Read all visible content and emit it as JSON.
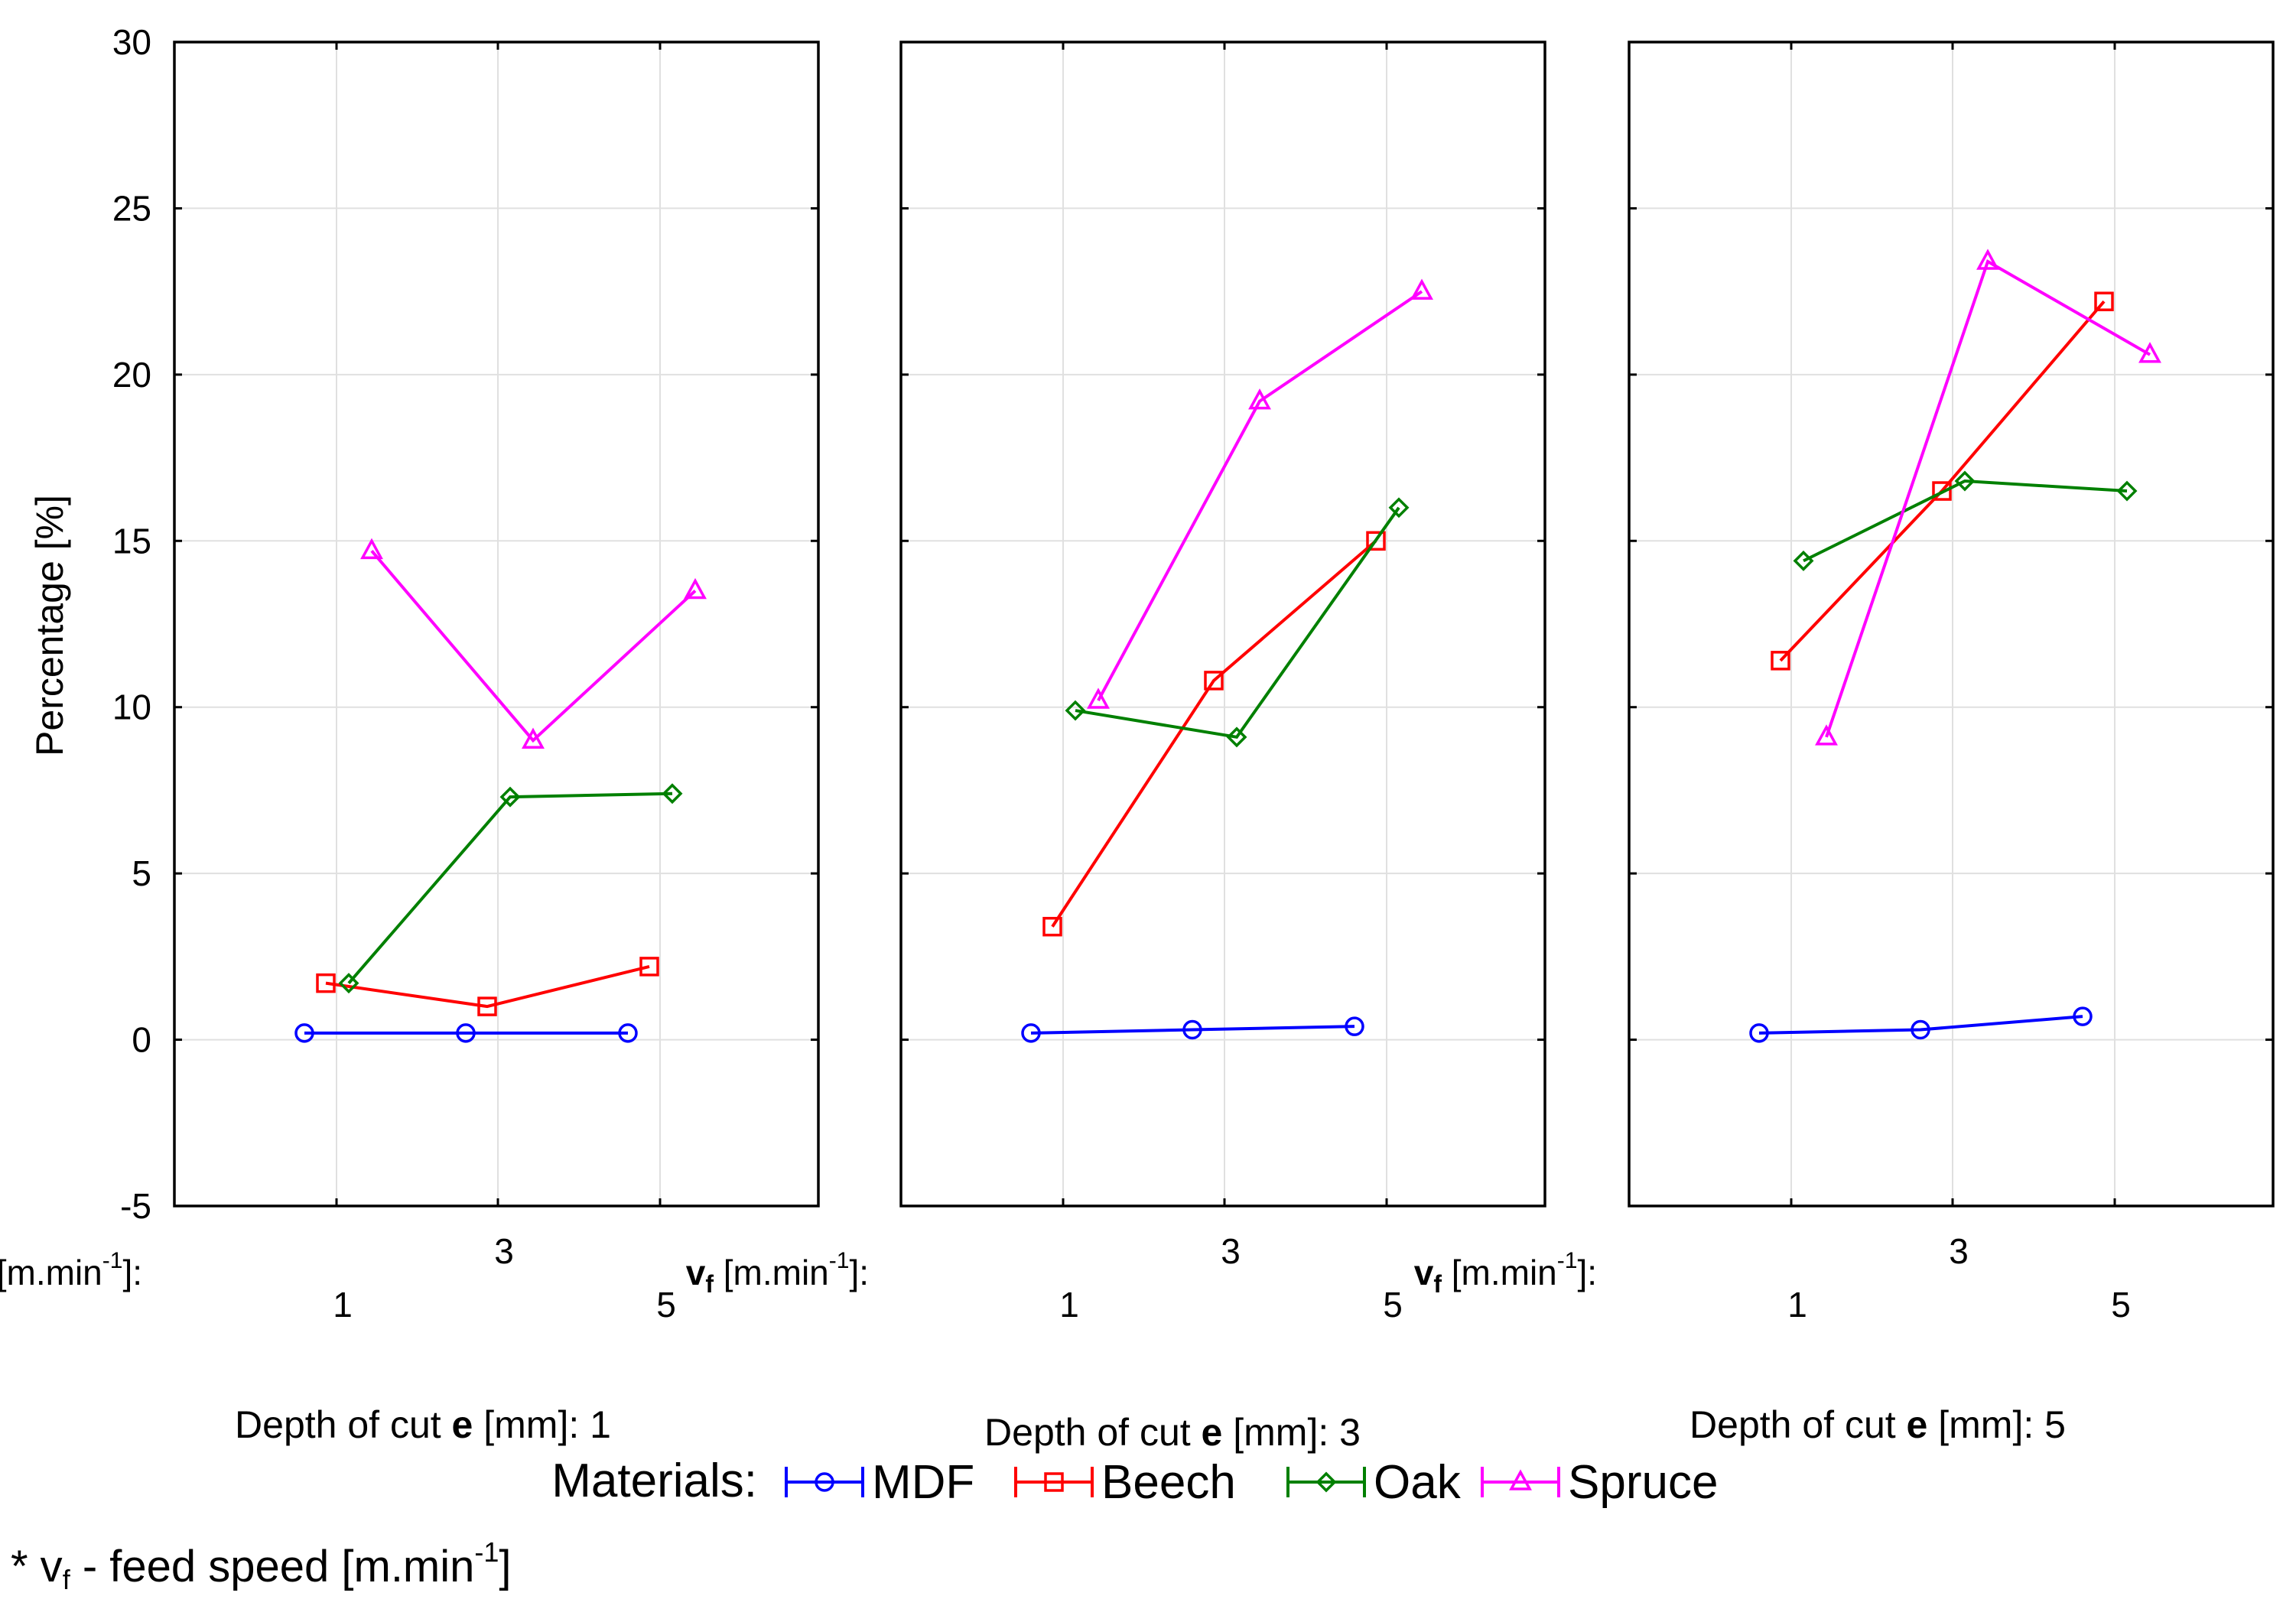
{
  "chart_data": {
    "type": "line",
    "ylabel": "Percentage [%]",
    "ylim": [
      -5,
      30
    ],
    "yticks": [
      "30",
      "25",
      "20",
      "15",
      "10",
      "5",
      "0",
      "-5"
    ],
    "ytick_values": [
      30,
      25,
      20,
      15,
      10,
      5,
      0,
      -5
    ],
    "x_axis_label": "v",
    "x_axis_sub": "f",
    "x_axis_unit": "[m.min",
    "x_axis_exp": "-1",
    "x_axis_close": "]:",
    "categories": [
      "1",
      "3",
      "5"
    ],
    "grid": true,
    "panels": [
      {
        "title_prefix": "Depth of cut ",
        "title_var": "e",
        "title_suffix": " [mm]: 1",
        "series": [
          {
            "name": "MDF",
            "values": [
              0.2,
              0.2,
              0.2
            ]
          },
          {
            "name": "Beech",
            "values": [
              1.7,
              1.0,
              2.2
            ]
          },
          {
            "name": "Oak",
            "values": [
              1.7,
              7.3,
              7.4
            ]
          },
          {
            "name": "Spruce",
            "values": [
              14.7,
              9.0,
              13.5
            ]
          }
        ]
      },
      {
        "title_prefix": "Depth of cut ",
        "title_var": "e",
        "title_suffix": " [mm]: 3",
        "series": [
          {
            "name": "MDF",
            "values": [
              0.2,
              0.3,
              0.4
            ]
          },
          {
            "name": "Beech",
            "values": [
              3.4,
              10.8,
              15.0
            ]
          },
          {
            "name": "Oak",
            "values": [
              9.9,
              9.1,
              16.0
            ]
          },
          {
            "name": "Spruce",
            "values": [
              10.2,
              19.2,
              22.5
            ]
          }
        ]
      },
      {
        "title_prefix": "Depth of cut ",
        "title_var": "e",
        "title_suffix": " [mm]: 5",
        "series": [
          {
            "name": "MDF",
            "values": [
              0.2,
              0.3,
              0.7
            ]
          },
          {
            "name": "Beech",
            "values": [
              11.4,
              16.5,
              22.2
            ]
          },
          {
            "name": "Oak",
            "values": [
              14.4,
              16.8,
              16.5
            ]
          },
          {
            "name": "Spruce",
            "values": [
              9.1,
              23.4,
              20.6
            ]
          }
        ]
      }
    ],
    "legend": {
      "title": "Materials:",
      "items": [
        {
          "name": "MDF",
          "color": "#0000ff",
          "marker": "circle"
        },
        {
          "name": "Beech",
          "color": "#ff0000",
          "marker": "square"
        },
        {
          "name": "Oak",
          "color": "#008000",
          "marker": "diamond"
        },
        {
          "name": "Spruce",
          "color": "#ff00ff",
          "marker": "triangle"
        }
      ]
    },
    "footnote": {
      "prefix": "* v",
      "sub": "f",
      "text": " - feed speed  [m.min",
      "exp": "-1",
      "close": "]"
    }
  }
}
